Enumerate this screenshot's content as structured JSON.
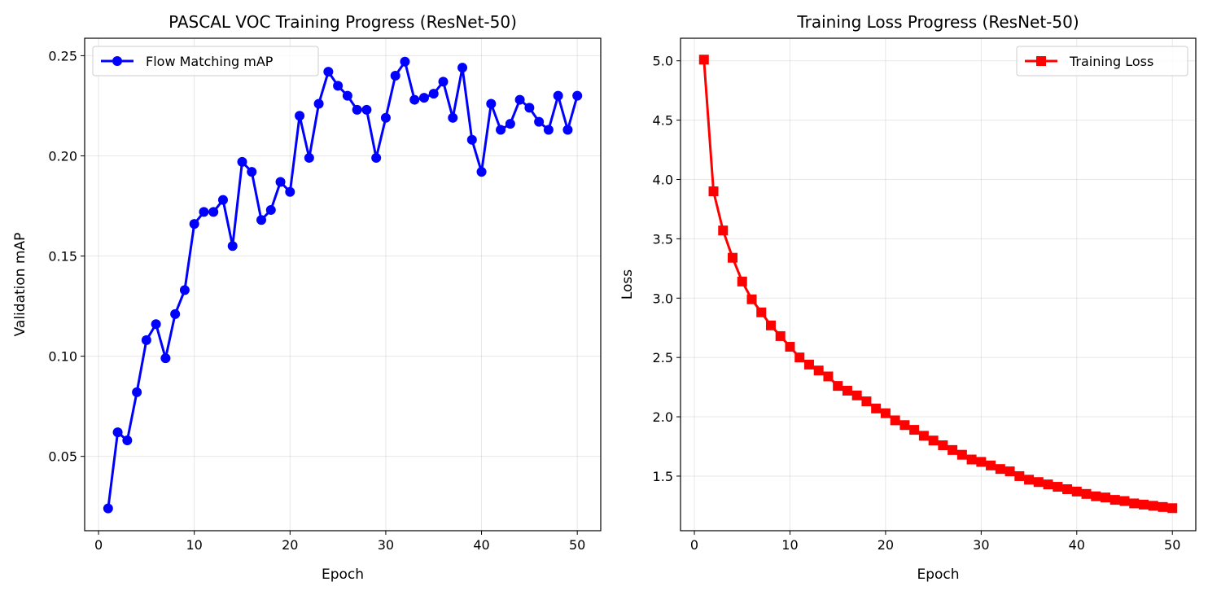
{
  "chart_data": [
    {
      "type": "line",
      "title": "PASCAL VOC Training Progress (ResNet-50)",
      "xlabel": "Epoch",
      "ylabel": "Validation mAP",
      "xlim": [
        -1.45,
        52.45
      ],
      "ylim": [
        0.0129,
        0.2587
      ],
      "xticks": [
        0,
        10,
        20,
        30,
        40,
        50
      ],
      "yticks": [
        0.05,
        0.1,
        0.15,
        0.2,
        0.25
      ],
      "xtick_labels": [
        "0",
        "10",
        "20",
        "30",
        "40",
        "50"
      ],
      "ytick_labels": [
        "0.05",
        "0.10",
        "0.15",
        "0.20",
        "0.25"
      ],
      "grid": true,
      "legend": "upper left",
      "series": [
        {
          "name": "Flow Matching mAP",
          "color": "#0000ff",
          "marker": "circle",
          "x": [
            1,
            2,
            3,
            4,
            5,
            6,
            7,
            8,
            9,
            10,
            11,
            12,
            13,
            14,
            15,
            16,
            17,
            18,
            19,
            20,
            21,
            22,
            23,
            24,
            25,
            26,
            27,
            28,
            29,
            30,
            31,
            32,
            33,
            34,
            35,
            36,
            37,
            38,
            39,
            40,
            41,
            42,
            43,
            44,
            45,
            46,
            47,
            48,
            49,
            50
          ],
          "y": [
            0.024,
            0.062,
            0.058,
            0.082,
            0.108,
            0.116,
            0.099,
            0.121,
            0.133,
            0.166,
            0.172,
            0.172,
            0.178,
            0.155,
            0.197,
            0.192,
            0.168,
            0.173,
            0.187,
            0.182,
            0.22,
            0.199,
            0.226,
            0.242,
            0.235,
            0.23,
            0.223,
            0.223,
            0.199,
            0.219,
            0.24,
            0.247,
            0.228,
            0.229,
            0.231,
            0.237,
            0.219,
            0.244,
            0.208,
            0.192,
            0.226,
            0.213,
            0.216,
            0.228,
            0.224,
            0.217,
            0.213,
            0.23,
            0.213,
            0.23
          ]
        }
      ]
    },
    {
      "type": "line",
      "title": "Training Loss Progress (ResNet-50)",
      "xlabel": "Epoch",
      "ylabel": "Loss",
      "xlim": [
        -1.45,
        52.45
      ],
      "ylim": [
        1.04,
        5.19
      ],
      "xticks": [
        0,
        10,
        20,
        30,
        40,
        50
      ],
      "yticks": [
        1.5,
        2.0,
        2.5,
        3.0,
        3.5,
        4.0,
        4.5,
        5.0
      ],
      "xtick_labels": [
        "0",
        "10",
        "20",
        "30",
        "40",
        "50"
      ],
      "ytick_labels": [
        "1.5",
        "2.0",
        "2.5",
        "3.0",
        "3.5",
        "4.0",
        "4.5",
        "5.0"
      ],
      "grid": true,
      "legend": "upper right",
      "series": [
        {
          "name": "Training Loss",
          "color": "#ff0000",
          "marker": "square",
          "x": [
            1,
            2,
            3,
            4,
            5,
            6,
            7,
            8,
            9,
            10,
            11,
            12,
            13,
            14,
            15,
            16,
            17,
            18,
            19,
            20,
            21,
            22,
            23,
            24,
            25,
            26,
            27,
            28,
            29,
            30,
            31,
            32,
            33,
            34,
            35,
            36,
            37,
            38,
            39,
            40,
            41,
            42,
            43,
            44,
            45,
            46,
            47,
            48,
            49,
            50
          ],
          "y": [
            5.01,
            3.9,
            3.57,
            3.34,
            3.14,
            2.99,
            2.88,
            2.77,
            2.68,
            2.59,
            2.5,
            2.44,
            2.39,
            2.34,
            2.26,
            2.22,
            2.18,
            2.13,
            2.07,
            2.03,
            1.97,
            1.93,
            1.89,
            1.84,
            1.8,
            1.76,
            1.72,
            1.68,
            1.64,
            1.62,
            1.59,
            1.56,
            1.54,
            1.5,
            1.47,
            1.45,
            1.43,
            1.41,
            1.39,
            1.37,
            1.35,
            1.33,
            1.32,
            1.3,
            1.29,
            1.27,
            1.26,
            1.25,
            1.24,
            1.23
          ]
        }
      ]
    }
  ]
}
